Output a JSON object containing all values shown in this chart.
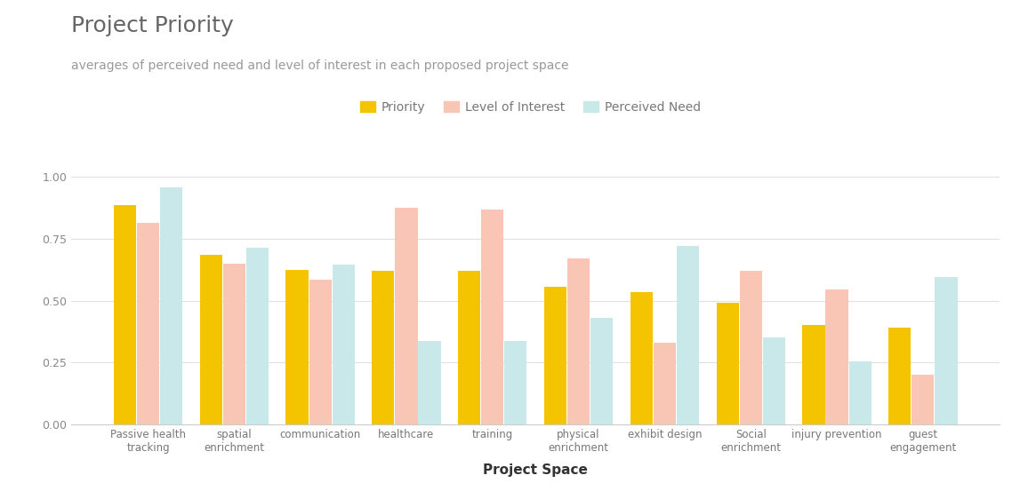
{
  "title": "Project Priority",
  "subtitle": "averages of perceived need and level of interest in each proposed project space",
  "xlabel": "Project Space",
  "categories": [
    "Passive health\ntracking",
    "spatial\nenrichment",
    "communication",
    "healthcare",
    "training",
    "physical\nenrichment",
    "exhibit design",
    "Social\nenrichment",
    "injury prevention",
    "guest\nengagement"
  ],
  "priority": [
    0.885,
    0.685,
    0.625,
    0.62,
    0.62,
    0.555,
    0.535,
    0.49,
    0.4,
    0.39
  ],
  "level_of_interest": [
    0.815,
    0.65,
    0.585,
    0.875,
    0.87,
    0.67,
    0.33,
    0.62,
    0.545,
    0.2
  ],
  "perceived_need": [
    0.96,
    0.715,
    0.645,
    0.335,
    0.335,
    0.43,
    0.72,
    0.35,
    0.255,
    0.595
  ],
  "color_priority": "#F5C400",
  "color_interest": "#F9C5B4",
  "color_need": "#C8E8EA",
  "ylim": [
    0,
    1.05
  ],
  "yticks": [
    0.0,
    0.25,
    0.5,
    0.75,
    1.0
  ],
  "legend_labels": [
    "Priority",
    "Level of Interest",
    "Perceived Need"
  ],
  "title_fontsize": 18,
  "subtitle_fontsize": 10,
  "xlabel_fontsize": 11,
  "background_color": "#ffffff"
}
